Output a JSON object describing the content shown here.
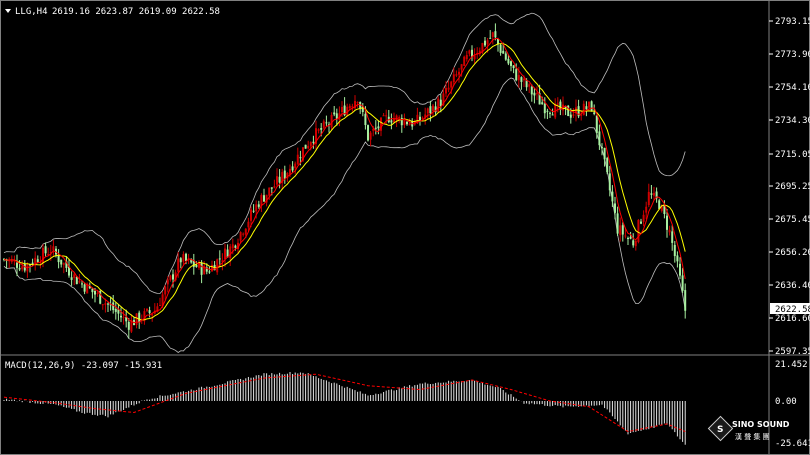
{
  "header": {
    "symbol": "LLG,H4",
    "ohlc": "2619.16 2623.87 2619.09 2622.58",
    "macd_label": "MACD(12,26,9) -23.097 -15.931"
  },
  "colors": {
    "bull": "#d00000",
    "bear": "#a8f0a0",
    "ma": "#ffff00",
    "signal": "#ff0000",
    "band": "#bebebe",
    "macd_hist": "#e6e6e6",
    "current_price_bg": "#ffffff"
  },
  "price_axis": {
    "ticks": [
      "2793.15",
      "2773.90",
      "2754.10",
      "2734.30",
      "2715.05",
      "2695.25",
      "2675.45",
      "2656.20",
      "2636.40",
      "2616.60",
      "2597.35"
    ],
    "current": "2622.58"
  },
  "macd_axis": {
    "ticks": [
      "21.452",
      "0.00",
      "-25.641"
    ]
  },
  "logo": {
    "name": "SINO SOUND",
    "chinese": "漢 聲 集 團"
  },
  "chart_data": {
    "type": "candlestick",
    "title": "LLG,H4",
    "ylim": [
      2597.35,
      2800
    ],
    "anchors": [
      [
        0,
        2652
      ],
      [
        8,
        2648
      ],
      [
        18,
        2658
      ],
      [
        28,
        2640
      ],
      [
        38,
        2628
      ],
      [
        48,
        2614
      ],
      [
        58,
        2622
      ],
      [
        68,
        2652
      ],
      [
        78,
        2645
      ],
      [
        88,
        2660
      ],
      [
        98,
        2686
      ],
      [
        108,
        2702
      ],
      [
        118,
        2723
      ],
      [
        128,
        2736
      ],
      [
        136,
        2748
      ],
      [
        140,
        2724
      ],
      [
        148,
        2736
      ],
      [
        158,
        2732
      ],
      [
        168,
        2745
      ],
      [
        178,
        2770
      ],
      [
        188,
        2784
      ],
      [
        196,
        2762
      ],
      [
        208,
        2742
      ],
      [
        218,
        2738
      ],
      [
        226,
        2742
      ],
      [
        232,
        2700
      ],
      [
        236,
        2670
      ],
      [
        242,
        2662
      ],
      [
        248,
        2690
      ],
      [
        252,
        2685
      ],
      [
        256,
        2668
      ],
      [
        260,
        2640
      ],
      [
        262,
        2622
      ]
    ],
    "macd": {
      "ylim": [
        -25.641,
        21.452
      ],
      "anchors": [
        [
          0,
          1
        ],
        [
          20,
          -2
        ],
        [
          30,
          -6
        ],
        [
          40,
          -8
        ],
        [
          55,
          1
        ],
        [
          80,
          8
        ],
        [
          100,
          14
        ],
        [
          115,
          15
        ],
        [
          130,
          8
        ],
        [
          140,
          3
        ],
        [
          160,
          9
        ],
        [
          180,
          11
        ],
        [
          190,
          7
        ],
        [
          200,
          -1
        ],
        [
          215,
          -3
        ],
        [
          230,
          -2
        ],
        [
          240,
          -17
        ],
        [
          255,
          -12
        ],
        [
          262,
          -23
        ]
      ],
      "signal_anchors": [
        [
          0,
          2
        ],
        [
          20,
          -1
        ],
        [
          35,
          -4
        ],
        [
          50,
          -6
        ],
        [
          70,
          4
        ],
        [
          100,
          12
        ],
        [
          120,
          14
        ],
        [
          140,
          8
        ],
        [
          160,
          6
        ],
        [
          180,
          11
        ],
        [
          195,
          6
        ],
        [
          210,
          0
        ],
        [
          225,
          -3
        ],
        [
          240,
          -16
        ],
        [
          255,
          -12
        ],
        [
          262,
          -16
        ]
      ]
    }
  }
}
